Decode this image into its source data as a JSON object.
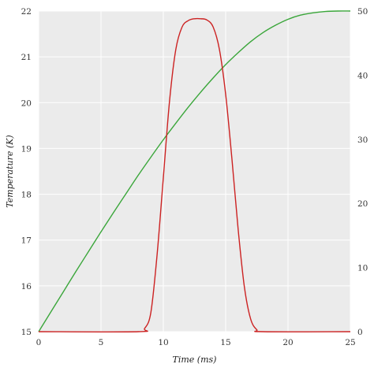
{
  "chart_data": {
    "type": "line",
    "xlabel": "Time (ms)",
    "ylabel": "Temperature (K)",
    "xlim": [
      0,
      25
    ],
    "ylim": [
      15,
      22
    ],
    "y2lim": [
      0,
      50
    ],
    "xticks": [
      0,
      5,
      10,
      15,
      20,
      25
    ],
    "yticks": [
      15,
      16,
      17,
      18,
      19,
      20,
      21,
      22
    ],
    "y2ticks": [
      0,
      10,
      20,
      30,
      40,
      50
    ],
    "grid": true,
    "colors": {
      "background": "#ebebeb",
      "grid": "#ffffff",
      "green": "#3aa63a",
      "red": "#cc2222"
    },
    "series": [
      {
        "axis": "left",
        "color": "#3aa63a",
        "x": [
          0,
          1,
          2,
          3,
          4,
          5,
          6,
          7,
          8,
          9,
          10,
          11,
          12,
          13,
          14,
          15,
          16,
          17,
          18,
          19,
          20,
          21,
          22,
          23,
          24,
          25
        ],
        "y": [
          15.0,
          15.44,
          15.88,
          16.32,
          16.75,
          17.18,
          17.6,
          18.01,
          18.42,
          18.81,
          19.19,
          19.55,
          19.9,
          20.23,
          20.54,
          20.83,
          21.09,
          21.33,
          21.53,
          21.69,
          21.82,
          21.91,
          21.96,
          21.99,
          22.0,
          22.0
        ]
      },
      {
        "axis": "right",
        "color": "#cc2222",
        "x": [
          0,
          8.0,
          8.5,
          9.0,
          9.5,
          10.0,
          10.5,
          11.0,
          11.5,
          12.0,
          12.5,
          13.0,
          13.5,
          14.0,
          14.5,
          15.0,
          15.5,
          16.0,
          16.5,
          17.0,
          17.5,
          18.0,
          25
        ],
        "y": [
          0,
          0,
          0.5,
          3,
          12,
          24,
          36,
          44,
          47.5,
          48.5,
          48.8,
          48.8,
          48.6,
          47.5,
          44,
          37,
          27,
          16,
          7,
          2,
          0.3,
          0,
          0
        ]
      }
    ]
  }
}
